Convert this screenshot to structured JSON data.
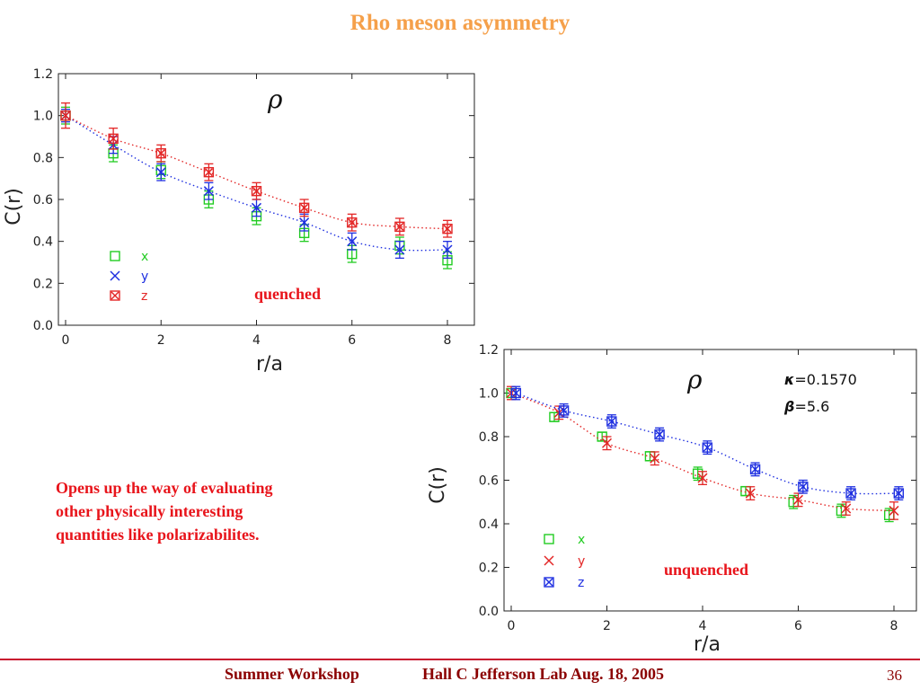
{
  "slide": {
    "title": "Rho meson asymmetry",
    "note_lines": [
      "Opens up the way of evaluating",
      "other physically interesting",
      "quantities like polarizabilites."
    ],
    "footer_left": "Summer Workshop",
    "footer_right": "Hall C Jefferson Lab Aug. 18, 2005",
    "page_number": "36"
  },
  "chart_data": [
    {
      "type": "scatter",
      "panel_label": "quenched",
      "symbol_label": "ρ",
      "params": [],
      "xlabel": "r/a",
      "ylabel": "C(r)",
      "xlim": [
        0,
        8.5
      ],
      "ylim": [
        0,
        1.2
      ],
      "xticks": [
        0,
        2,
        4,
        6,
        8
      ],
      "yticks": [
        "0.0",
        "0.2",
        "0.4",
        "0.6",
        "0.8",
        "1.0",
        "1.2"
      ],
      "grid": false,
      "legend_position": "bottom-left",
      "series": [
        {
          "name": "x",
          "marker": "square",
          "color": "#22cc22",
          "x": [
            0,
            1,
            2,
            3,
            4,
            5,
            6,
            7,
            8
          ],
          "y": [
            1.0,
            0.82,
            0.74,
            0.6,
            0.52,
            0.44,
            0.34,
            0.38,
            0.31
          ],
          "err": [
            0.04,
            0.04,
            0.04,
            0.04,
            0.04,
            0.04,
            0.04,
            0.04,
            0.04
          ],
          "fit": false
        },
        {
          "name": "y",
          "marker": "cross",
          "color": "#1e2fe0",
          "x": [
            0,
            1,
            2,
            3,
            4,
            5,
            6,
            7,
            8
          ],
          "y": [
            1.0,
            0.86,
            0.73,
            0.64,
            0.56,
            0.49,
            0.4,
            0.36,
            0.36
          ],
          "err": [
            0.03,
            0.04,
            0.04,
            0.04,
            0.04,
            0.04,
            0.04,
            0.04,
            0.04
          ],
          "fit": true
        },
        {
          "name": "z",
          "marker": "boxcross",
          "color": "#e32626",
          "x": [
            0,
            1,
            2,
            3,
            4,
            5,
            6,
            7,
            8
          ],
          "y": [
            1.0,
            0.89,
            0.82,
            0.73,
            0.64,
            0.56,
            0.49,
            0.47,
            0.46
          ],
          "err": [
            0.06,
            0.05,
            0.04,
            0.04,
            0.04,
            0.04,
            0.04,
            0.04,
            0.04
          ],
          "fit": true
        }
      ]
    },
    {
      "type": "scatter",
      "panel_label": "unquenched",
      "symbol_label": "ρ",
      "params": [
        {
          "symbol": "κ",
          "text": "=0.1570"
        },
        {
          "symbol": "β",
          "text": "=5.6"
        }
      ],
      "xlabel": "r/a",
      "ylabel": "C(r)",
      "xlim": [
        0,
        8.5
      ],
      "ylim": [
        0,
        1.2
      ],
      "xticks": [
        0,
        2,
        4,
        6,
        8
      ],
      "yticks": [
        "0.0",
        "0.2",
        "0.4",
        "0.6",
        "0.8",
        "1.0",
        "1.2"
      ],
      "grid": false,
      "legend_position": "bottom-left",
      "series": [
        {
          "name": "x",
          "marker": "square",
          "color": "#22cc22",
          "x": [
            0,
            0.9,
            1.9,
            2.9,
            3.9,
            4.9,
            5.9,
            6.9,
            7.9
          ],
          "y": [
            1.0,
            0.89,
            0.8,
            0.71,
            0.63,
            0.55,
            0.5,
            0.46,
            0.44
          ],
          "err": [
            0.02,
            0.02,
            0.02,
            0.02,
            0.03,
            0.02,
            0.03,
            0.03,
            0.03
          ],
          "fit": false
        },
        {
          "name": "y",
          "marker": "cross",
          "color": "#e32626",
          "x": [
            0,
            1,
            2,
            3,
            4,
            5,
            6,
            7,
            8
          ],
          "y": [
            1.0,
            0.91,
            0.77,
            0.7,
            0.61,
            0.54,
            0.51,
            0.47,
            0.46
          ],
          "err": [
            0.03,
            0.03,
            0.03,
            0.03,
            0.03,
            0.03,
            0.03,
            0.03,
            0.04
          ],
          "fit": true
        },
        {
          "name": "z",
          "marker": "boxcross",
          "color": "#1e2fe0",
          "x": [
            0.1,
            1.1,
            2.1,
            3.1,
            4.1,
            5.1,
            6.1,
            7.1,
            8.1
          ],
          "y": [
            1.0,
            0.92,
            0.87,
            0.81,
            0.75,
            0.65,
            0.57,
            0.54,
            0.54
          ],
          "err": [
            0.03,
            0.03,
            0.03,
            0.03,
            0.03,
            0.03,
            0.03,
            0.03,
            0.03
          ],
          "fit": true
        }
      ]
    }
  ]
}
